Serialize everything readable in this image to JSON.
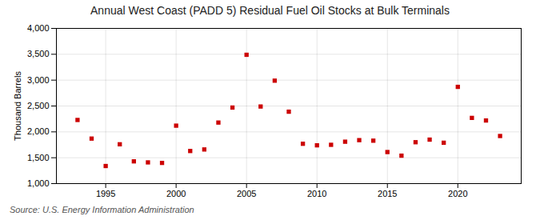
{
  "chart_data": {
    "type": "scatter",
    "title": "Annual West Coast (PADD 5) Residual Fuel Oil Stocks at Bulk Terminals",
    "ylabel": "Thousand Barrels",
    "annotations": [
      "Source: U.S. Energy Information Administration"
    ],
    "x": [
      1993,
      1994,
      1995,
      1996,
      1997,
      1998,
      1999,
      2000,
      2001,
      2002,
      2003,
      2004,
      2005,
      2006,
      2007,
      2008,
      2009,
      2010,
      2011,
      2012,
      2013,
      2014,
      2015,
      2016,
      2017,
      2018,
      2019,
      2020,
      2021,
      2022,
      2023
    ],
    "values": [
      2230,
      1870,
      1340,
      1760,
      1430,
      1410,
      1400,
      2120,
      1630,
      1660,
      2180,
      2470,
      3490,
      2490,
      2990,
      2390,
      1770,
      1740,
      1750,
      1810,
      1840,
      1830,
      1610,
      1540,
      1800,
      1850,
      1790,
      2870,
      2270,
      2220,
      1920
    ],
    "color": "#cc0000",
    "marker": "square",
    "xlim": [
      1991.5,
      2024.5
    ],
    "xticks": [
      1995,
      2000,
      2005,
      2010,
      2015,
      2020
    ],
    "ylim": [
      1000,
      4000
    ],
    "yticks": [
      {
        "value": 1000,
        "label": "1,000"
      },
      {
        "value": 1500,
        "label": "1,500"
      },
      {
        "value": 2000,
        "label": "2,000"
      },
      {
        "value": 2500,
        "label": "2,500"
      },
      {
        "value": 3000,
        "label": "3,000"
      },
      {
        "value": 3500,
        "label": "3,500"
      },
      {
        "value": 4000,
        "label": "4,000"
      }
    ],
    "grid": true
  }
}
